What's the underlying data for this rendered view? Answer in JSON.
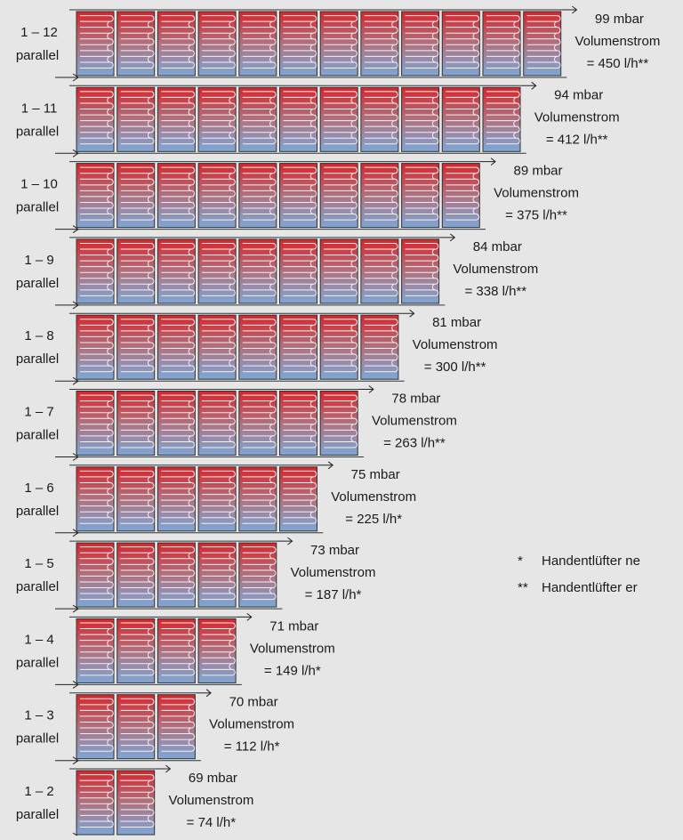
{
  "rows": [
    {
      "label": "1 – 12",
      "mode": "parallel",
      "pressure": "99 mbar",
      "flow_title": "Volumenstrom",
      "flow": "= 450 l/h**"
    },
    {
      "label": "1 – 11",
      "mode": "parallel",
      "pressure": "94 mbar",
      "flow_title": "Volumenstrom",
      "flow": "= 412 l/h**"
    },
    {
      "label": "1 – 10",
      "mode": "parallel",
      "pressure": "89 mbar",
      "flow_title": "Volumenstrom",
      "flow": "= 375 l/h**"
    },
    {
      "label": "1 – 9",
      "mode": "parallel",
      "pressure": "84 mbar",
      "flow_title": "Volumenstrom",
      "flow": "= 338 l/h**"
    },
    {
      "label": "1 – 8",
      "mode": "parallel",
      "pressure": "81 mbar",
      "flow_title": "Volumenstrom",
      "flow": "= 300 l/h**"
    },
    {
      "label": "1 – 7",
      "mode": "parallel",
      "pressure": "78 mbar",
      "flow_title": "Volumenstrom",
      "flow": "= 263 l/h**"
    },
    {
      "label": "1 – 6",
      "mode": "parallel",
      "pressure": "75 mbar",
      "flow_title": "Volumenstrom",
      "flow": "= 225 l/h*"
    },
    {
      "label": "1 – 5",
      "mode": "parallel",
      "pressure": "73 mbar",
      "flow_title": "Volumenstrom",
      "flow": "= 187 l/h*"
    },
    {
      "label": "1 – 4",
      "mode": "parallel",
      "pressure": "71 mbar",
      "flow_title": "Volumenstrom",
      "flow": "= 149 l/h*"
    },
    {
      "label": "1 – 3",
      "mode": "parallel",
      "pressure": "70 mbar",
      "flow_title": "Volumenstrom",
      "flow": "= 112 l/h*"
    },
    {
      "label": "1 – 2",
      "mode": "parallel",
      "pressure": "69 mbar",
      "flow_title": "Volumenstrom",
      "flow": "= 74 l/h*"
    }
  ],
  "legend": [
    {
      "marker": "*",
      "text": "Handentlüfter ne"
    },
    {
      "marker": "**",
      "text": "Handentlüfter er"
    }
  ]
}
